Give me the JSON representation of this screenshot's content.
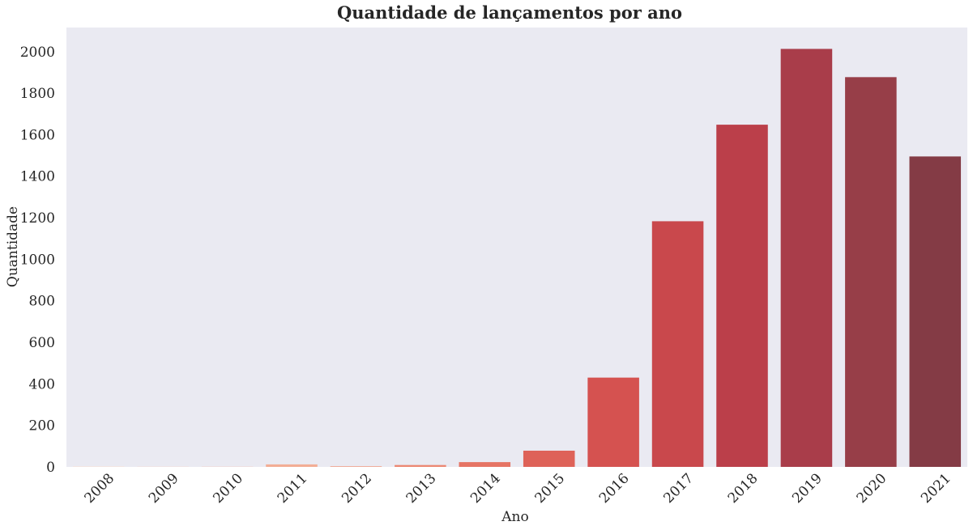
{
  "chart_data": {
    "type": "bar",
    "title": "Quantidade de lançamentos por ano",
    "xlabel": "Ano",
    "ylabel": "Quantidade",
    "categories": [
      "2008",
      "2009",
      "2010",
      "2011",
      "2012",
      "2013",
      "2014",
      "2015",
      "2016",
      "2017",
      "2018",
      "2019",
      "2020",
      "2021"
    ],
    "values": [
      2,
      1,
      1,
      12,
      3,
      9,
      23,
      78,
      430,
      1183,
      1648,
      2013,
      1877,
      1495
    ],
    "colors": [
      "#fbe0d3",
      "#f9d2c0",
      "#f6c0aa",
      "#f3ad95",
      "#f09a82",
      "#ec8772",
      "#e67464",
      "#de6258",
      "#d55250",
      "#c9484c",
      "#bb3f4a",
      "#a93d4a",
      "#973e48",
      "#843b45"
    ],
    "yticks": [
      0,
      200,
      400,
      600,
      800,
      1000,
      1200,
      1400,
      1600,
      1800,
      2000
    ],
    "ylim": [
      0,
      2116
    ],
    "grid": false,
    "background": "#eaeaf2"
  }
}
